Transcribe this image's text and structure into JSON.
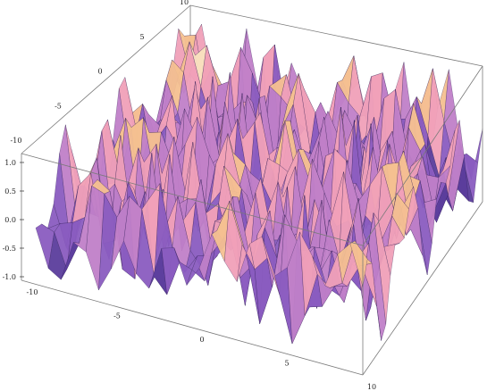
{
  "chart_data": {
    "type": "surface3d",
    "title": "",
    "xlabel": "",
    "ylabel": "",
    "zlabel": "",
    "xlim": [
      -10,
      10
    ],
    "ylim": [
      -10,
      10
    ],
    "zlim": [
      -1,
      1
    ],
    "x_ticks": [
      -10,
      -5,
      0,
      5,
      10
    ],
    "y_ticks": [
      -10,
      -5,
      0,
      5,
      10
    ],
    "z_ticks": [
      -1.0,
      -0.5,
      0.0,
      0.5,
      1.0
    ],
    "x_tick_labels": [
      "-10",
      "-5",
      "0",
      "5",
      "10"
    ],
    "y_tick_labels": [
      "-10",
      "-5",
      "0",
      "5",
      "10"
    ],
    "z_tick_labels": [
      "-1.0",
      "-0.5",
      "0.0",
      "0.5",
      "1.0"
    ],
    "box": true,
    "grid": false,
    "colors": [
      "#3a2a78",
      "#5b3d9c",
      "#8a5cc0",
      "#c080c8",
      "#f0a0b8",
      "#f4c090",
      "#f8e0c0"
    ]
  }
}
